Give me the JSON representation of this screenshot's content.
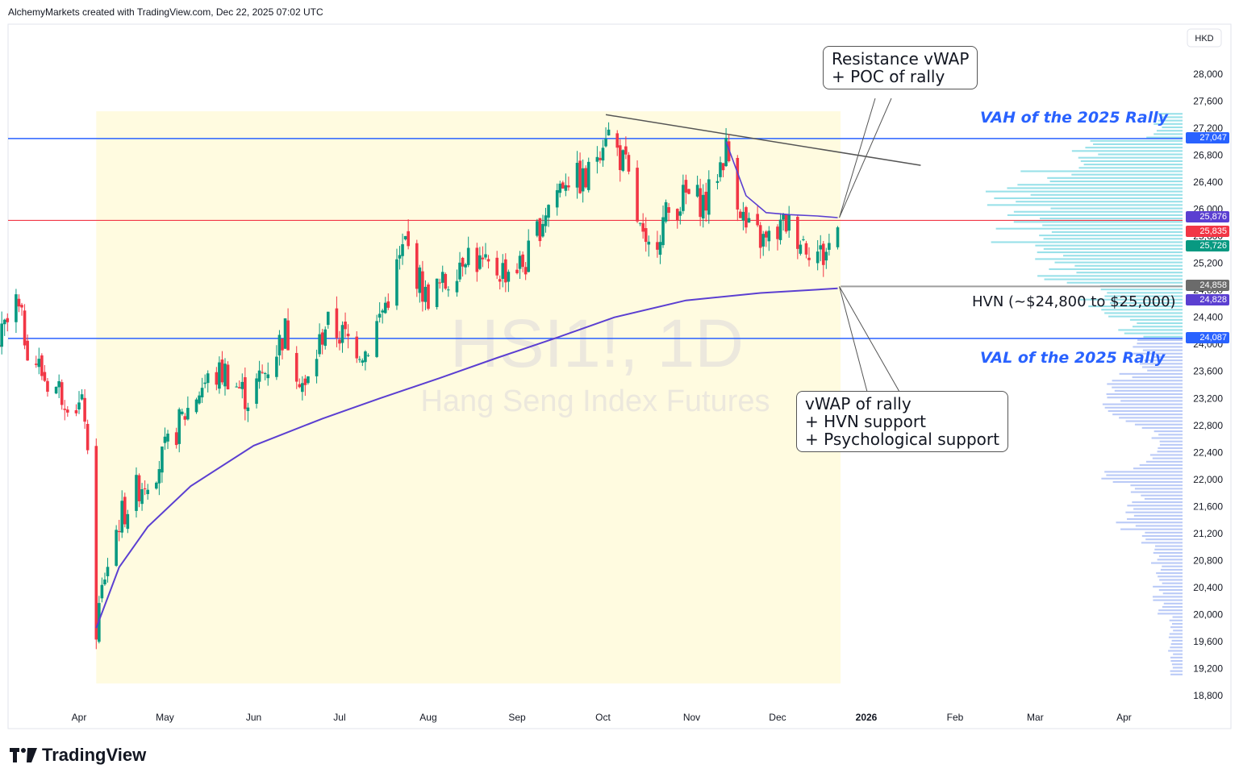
{
  "header": {
    "text": "AlchemyMarkets created with TradingView.com, Dec 22, 2025 07:02 UTC"
  },
  "currency": "HKD",
  "watermark": {
    "symbol": "HSI1!, 1D",
    "name": "Hang Seng Index Futures"
  },
  "annotations": {
    "resistance": "Resistance vWAP\n+ POC of rally",
    "support": "vWAP of rally\n+ HVN support\n+ Psychological support",
    "vah": "VAH of the 2025 Rally",
    "val": "VAL of the 2025 Rally",
    "hvn": "HVN (~$24,800 to $25,000)"
  },
  "logo": {
    "text": "TradingView"
  },
  "colors": {
    "up": "#089981",
    "down": "#f23645",
    "vwap": "#5b3fd1",
    "vah_val": "#2962ff",
    "poc": "#f23645",
    "hvn": "#9e9e9e",
    "trend": "#555555",
    "highlight": "#fffbe0",
    "profile_upper": "#7fd9e3",
    "profile_lower": "#a9bdf5"
  },
  "chart_data": {
    "type": "candlestick",
    "y_axis": {
      "min": 18600,
      "max": 28400,
      "ticks": [
        "28,000",
        "27,600",
        "27,200",
        "26,800",
        "26,400",
        "26,000",
        "25,600",
        "25,200",
        "24,800",
        "24,400",
        "24,000",
        "23,600",
        "23,200",
        "22,800",
        "22,400",
        "22,000",
        "21,600",
        "21,200",
        "20,800",
        "20,400",
        "20,000",
        "19,600",
        "19,200",
        "18,800"
      ]
    },
    "x_axis": {
      "labels": [
        "Apr",
        "May",
        "Jun",
        "Jul",
        "Aug",
        "Sep",
        "Oct",
        "Nov",
        "Dec",
        "2026",
        "Feb",
        "Mar",
        "Apr"
      ]
    },
    "price_labels": [
      {
        "value": "27,047",
        "color": "#2962ff"
      },
      {
        "value": "25,876",
        "color": "#5b3fd1"
      },
      {
        "value": "25,835",
        "color": "#f23645"
      },
      {
        "value": "25,726",
        "color": "#089981"
      },
      {
        "value": "24,858",
        "color": "#6b6b6b"
      },
      {
        "value": "24,828",
        "color": "#5b3fd1"
      },
      {
        "value": "24,087",
        "color": "#2962ff"
      }
    ],
    "levels": {
      "vah": 27047,
      "poc": 25835,
      "hvn": 24858,
      "val": 24087,
      "last_close": 25726,
      "vwap_last": 24828
    },
    "trendline": [
      {
        "date": "2025-10-02",
        "price": 27400
      },
      {
        "date": "2026-01-20",
        "price": 26650
      }
    ],
    "path_points": [
      [
        "2025-03-03",
        23900
      ],
      [
        "2025-03-10",
        24600
      ],
      [
        "2025-03-14",
        24000
      ],
      [
        "2025-03-20",
        23500
      ],
      [
        "2025-03-26",
        23300
      ],
      [
        "2025-04-03",
        23000
      ],
      [
        "2025-04-07",
        19800
      ],
      [
        "2025-04-10",
        20600
      ],
      [
        "2025-04-15",
        21400
      ],
      [
        "2025-04-22",
        21900
      ],
      [
        "2025-04-30",
        22300
      ],
      [
        "2025-05-07",
        22900
      ],
      [
        "2025-05-14",
        23400
      ],
      [
        "2025-05-22",
        23600
      ],
      [
        "2025-05-30",
        23200
      ],
      [
        "2025-06-05",
        23600
      ],
      [
        "2025-06-12",
        24200
      ],
      [
        "2025-06-19",
        23300
      ],
      [
        "2025-06-26",
        24300
      ],
      [
        "2025-07-03",
        24100
      ],
      [
        "2025-07-10",
        23900
      ],
      [
        "2025-07-17",
        24600
      ],
      [
        "2025-07-24",
        25500
      ],
      [
        "2025-07-31",
        24700
      ],
      [
        "2025-08-07",
        24900
      ],
      [
        "2025-08-14",
        25400
      ],
      [
        "2025-08-21",
        25100
      ],
      [
        "2025-08-28",
        25100
      ],
      [
        "2025-09-04",
        25200
      ],
      [
        "2025-09-11",
        26000
      ],
      [
        "2025-09-18",
        26500
      ],
      [
        "2025-09-25",
        26400
      ],
      [
        "2025-10-02",
        27200
      ],
      [
        "2025-10-09",
        26600
      ],
      [
        "2025-10-16",
        25300
      ],
      [
        "2025-10-23",
        25900
      ],
      [
        "2025-10-30",
        26200
      ],
      [
        "2025-11-06",
        26100
      ],
      [
        "2025-11-13",
        26900
      ],
      [
        "2025-11-20",
        25700
      ],
      [
        "2025-11-27",
        25500
      ],
      [
        "2025-12-04",
        25800
      ],
      [
        "2025-12-11",
        25500
      ],
      [
        "2025-12-17",
        25300
      ],
      [
        "2025-12-22",
        25726
      ]
    ],
    "vwap_points": [
      [
        "2025-04-07",
        19800
      ],
      [
        "2025-04-15",
        20700
      ],
      [
        "2025-04-25",
        21300
      ],
      [
        "2025-05-10",
        21900
      ],
      [
        "2025-06-01",
        22500
      ],
      [
        "2025-06-25",
        22900
      ],
      [
        "2025-07-15",
        23200
      ],
      [
        "2025-08-05",
        23500
      ],
      [
        "2025-08-25",
        23800
      ],
      [
        "2025-09-15",
        24100
      ],
      [
        "2025-10-05",
        24400
      ],
      [
        "2025-10-30",
        24650
      ],
      [
        "2025-11-25",
        24760
      ],
      [
        "2025-12-22",
        24828
      ]
    ],
    "volume_profile": {
      "range": [
        19100,
        27400
      ],
      "peak_near": 25835
    }
  }
}
